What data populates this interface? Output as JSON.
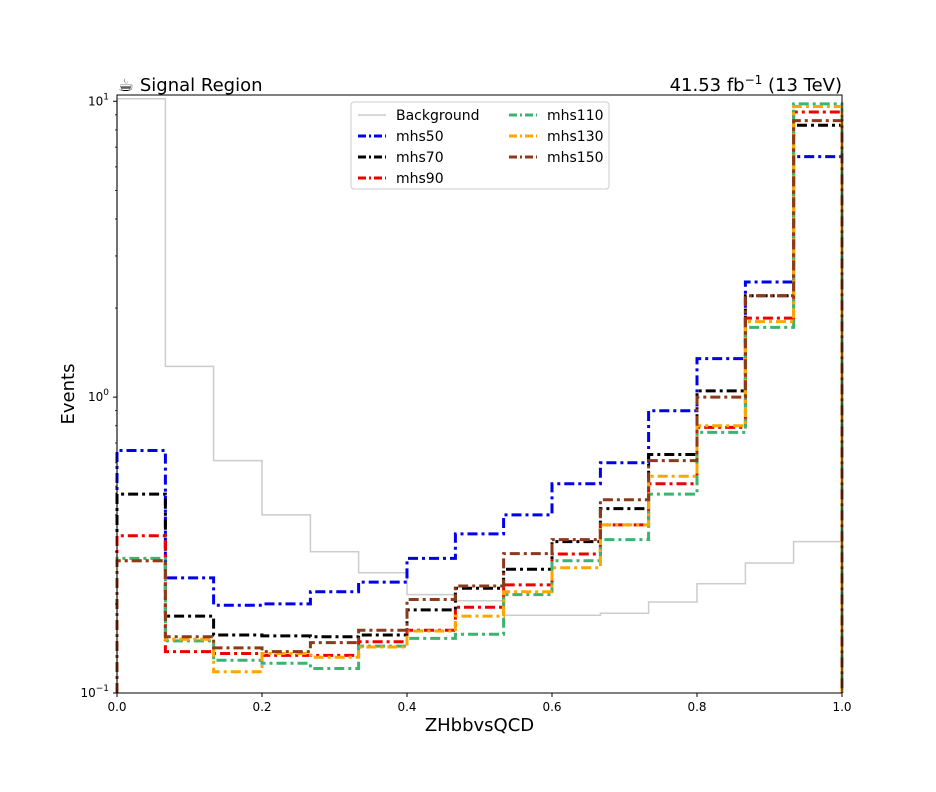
{
  "chart_data": {
    "type": "step",
    "title_left": "☕ Signal Region",
    "title_right_main": "41.53 fb",
    "title_right_sup": "−1",
    "title_right_tail": " (13 TeV)",
    "xlabel": "ZHbbvsQCD",
    "ylabel": "Events",
    "xlim": [
      0.0,
      1.0
    ],
    "ylim": [
      0.1,
      10.5
    ],
    "yscale": "log",
    "xticks": [
      0.0,
      0.2,
      0.4,
      0.6,
      0.8,
      1.0
    ],
    "xtick_labels": [
      "0.0",
      "0.2",
      "0.4",
      "0.6",
      "0.8",
      "1.0"
    ],
    "ytick_labels": [
      {
        "base": "10",
        "exp": "−1",
        "value": 0.1
      },
      {
        "base": "10",
        "exp": "0",
        "value": 1
      },
      {
        "base": "10",
        "exp": "1",
        "value": 10
      }
    ],
    "bin_edges": [
      0.0,
      0.0667,
      0.1333,
      0.2,
      0.2667,
      0.3333,
      0.4,
      0.4667,
      0.5333,
      0.6,
      0.6667,
      0.7333,
      0.8,
      0.8667,
      0.9333,
      1.0
    ],
    "legend_position": "upper-center",
    "series": [
      {
        "name": "Background",
        "color": "#cccccc",
        "style": "solid",
        "values": [
          10.2,
          1.27,
          0.61,
          0.4,
          0.3,
          0.255,
          0.215,
          0.205,
          0.183,
          0.183,
          0.186,
          0.203,
          0.234,
          0.275,
          0.325
        ]
      },
      {
        "name": "mhs50",
        "color": "#0000ee",
        "style": "dashdot",
        "values": [
          0.66,
          0.245,
          0.198,
          0.2,
          0.22,
          0.237,
          0.285,
          0.345,
          0.4,
          0.51,
          0.6,
          0.9,
          1.35,
          2.45,
          6.5
        ]
      },
      {
        "name": "mhs70",
        "color": "#000000",
        "style": "dashdot",
        "values": [
          0.47,
          0.182,
          0.157,
          0.156,
          0.155,
          0.157,
          0.191,
          0.226,
          0.262,
          0.325,
          0.42,
          0.64,
          1.05,
          2.2,
          8.3
        ]
      },
      {
        "name": "mhs90",
        "color": "#ee0000",
        "style": "dashdot",
        "values": [
          0.34,
          0.138,
          0.136,
          0.134,
          0.134,
          0.149,
          0.163,
          0.195,
          0.232,
          0.295,
          0.37,
          0.51,
          0.79,
          1.85,
          9.2
        ]
      },
      {
        "name": "mhs110",
        "color": "#3cb371",
        "style": "dashdot",
        "values": [
          0.285,
          0.15,
          0.129,
          0.126,
          0.121,
          0.144,
          0.153,
          0.158,
          0.215,
          0.28,
          0.33,
          0.47,
          0.76,
          1.72,
          9.8
        ]
      },
      {
        "name": "mhs130",
        "color": "#ffa500",
        "style": "dashdot",
        "values": [
          0.28,
          0.152,
          0.118,
          0.136,
          0.132,
          0.143,
          0.162,
          0.182,
          0.22,
          0.265,
          0.37,
          0.54,
          0.8,
          1.8,
          9.6
        ]
      },
      {
        "name": "mhs150",
        "color": "#8b3a1a",
        "style": "dashdot",
        "values": [
          0.28,
          0.155,
          0.142,
          0.138,
          0.148,
          0.163,
          0.207,
          0.23,
          0.296,
          0.33,
          0.45,
          0.61,
          1.0,
          2.2,
          8.6
        ]
      }
    ]
  }
}
